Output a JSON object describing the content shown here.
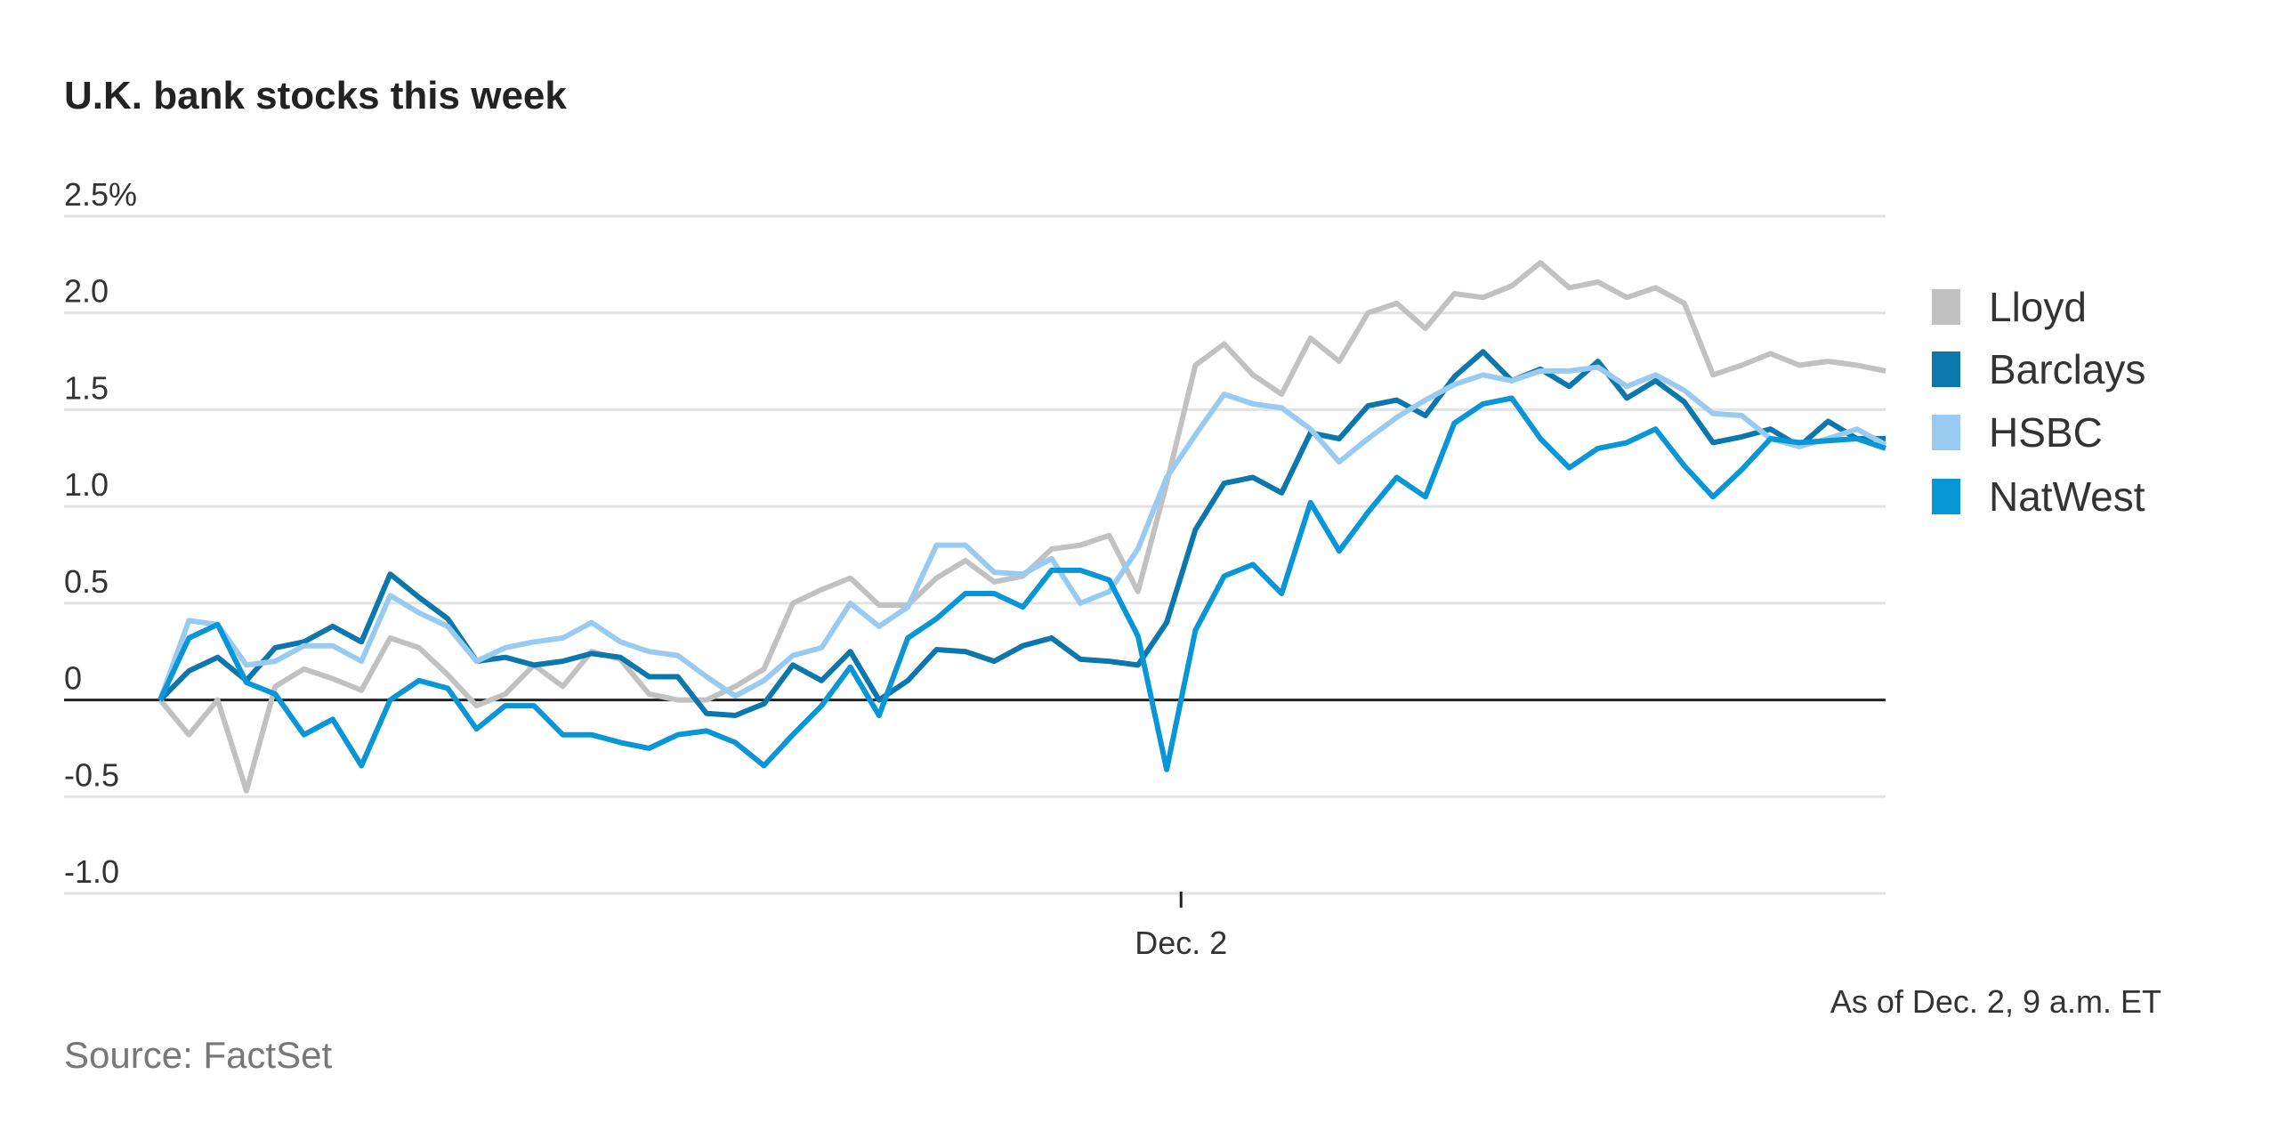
{
  "chart_data": {
    "type": "line",
    "title": "U.K. bank stocks this week",
    "xlabel": "",
    "ylabel": "",
    "ylim": [
      -1.0,
      2.5
    ],
    "y_ticks": [
      {
        "value": 2.5,
        "label": "2.5%"
      },
      {
        "value": 2.0,
        "label": "2.0"
      },
      {
        "value": 1.5,
        "label": "1.5"
      },
      {
        "value": 1.0,
        "label": "1.0"
      },
      {
        "value": 0.5,
        "label": "0.5"
      },
      {
        "value": 0,
        "label": "0"
      },
      {
        "value": -0.5,
        "label": "-0.5"
      },
      {
        "value": -1.0,
        "label": "-1.0"
      }
    ],
    "x_ticks": [
      {
        "index": 35.5,
        "label": "Dec. 2"
      }
    ],
    "grid": true,
    "legend_position": "right",
    "annotation": "As of Dec. 2, 9 a.m. ET",
    "source": "Source: FactSet",
    "series": [
      {
        "name": "Lloyd",
        "color": "#c1c1c1",
        "values": [
          0,
          -0.18,
          0,
          -0.47,
          0.07,
          0.16,
          0.11,
          0.05,
          0.32,
          0.27,
          0.13,
          -0.03,
          0.03,
          0.18,
          0.07,
          0.25,
          0.21,
          0.03,
          0,
          0,
          0.07,
          0.16,
          0.5,
          0.57,
          0.63,
          0.49,
          0.49,
          0.63,
          0.72,
          0.61,
          0.64,
          0.78,
          0.8,
          0.85,
          0.56,
          1.12,
          1.73,
          1.84,
          1.68,
          1.58,
          1.87,
          1.75,
          2.0,
          2.05,
          1.92,
          2.1,
          2.08,
          2.14,
          2.26,
          2.13,
          2.16,
          2.08,
          2.13,
          2.05,
          1.68,
          1.73,
          1.79,
          1.73,
          1.75,
          1.73,
          1.7
        ]
      },
      {
        "name": "Barclays",
        "color": "#0b77ad",
        "values": [
          0,
          0.15,
          0.22,
          0.1,
          0.27,
          0.3,
          0.38,
          0.3,
          0.65,
          0.53,
          0.42,
          0.2,
          0.22,
          0.18,
          0.2,
          0.24,
          0.22,
          0.12,
          0.12,
          -0.07,
          -0.08,
          -0.02,
          0.18,
          0.1,
          0.25,
          0,
          0.1,
          0.26,
          0.25,
          0.2,
          0.28,
          0.32,
          0.21,
          0.2,
          0.18,
          0.4,
          0.88,
          1.12,
          1.15,
          1.07,
          1.38,
          1.35,
          1.52,
          1.55,
          1.47,
          1.67,
          1.8,
          1.65,
          1.71,
          1.62,
          1.75,
          1.56,
          1.65,
          1.54,
          1.33,
          1.36,
          1.4,
          1.31,
          1.44,
          1.35,
          1.35
        ]
      },
      {
        "name": "HSBC",
        "color": "#98cbef",
        "values": [
          0,
          0.41,
          0.39,
          0.18,
          0.2,
          0.28,
          0.28,
          0.2,
          0.54,
          0.45,
          0.38,
          0.2,
          0.27,
          0.3,
          0.32,
          0.4,
          0.3,
          0.25,
          0.23,
          0.12,
          0.02,
          0.1,
          0.23,
          0.27,
          0.5,
          0.38,
          0.48,
          0.8,
          0.8,
          0.66,
          0.65,
          0.73,
          0.5,
          0.56,
          0.78,
          1.15,
          1.37,
          1.58,
          1.53,
          1.51,
          1.4,
          1.23,
          1.35,
          1.46,
          1.55,
          1.63,
          1.68,
          1.65,
          1.7,
          1.7,
          1.72,
          1.62,
          1.68,
          1.6,
          1.48,
          1.47,
          1.35,
          1.31,
          1.35,
          1.4,
          1.32
        ]
      },
      {
        "name": "NatWest",
        "color": "#0896d7",
        "values": [
          0,
          0.32,
          0.39,
          0.09,
          0.03,
          -0.18,
          -0.1,
          -0.34,
          0,
          0.1,
          0.06,
          -0.15,
          -0.03,
          -0.03,
          -0.18,
          -0.18,
          -0.22,
          -0.25,
          -0.18,
          -0.16,
          -0.22,
          -0.34,
          -0.18,
          -0.03,
          0.17,
          -0.08,
          0.32,
          0.42,
          0.55,
          0.55,
          0.48,
          0.67,
          0.67,
          0.62,
          0.33,
          -0.36,
          0.36,
          0.64,
          0.7,
          0.55,
          1.02,
          0.77,
          0.97,
          1.15,
          1.05,
          1.43,
          1.53,
          1.56,
          1.35,
          1.2,
          1.3,
          1.33,
          1.4,
          1.21,
          1.05,
          1.19,
          1.35,
          1.33,
          1.34,
          1.35,
          1.3
        ]
      }
    ]
  }
}
